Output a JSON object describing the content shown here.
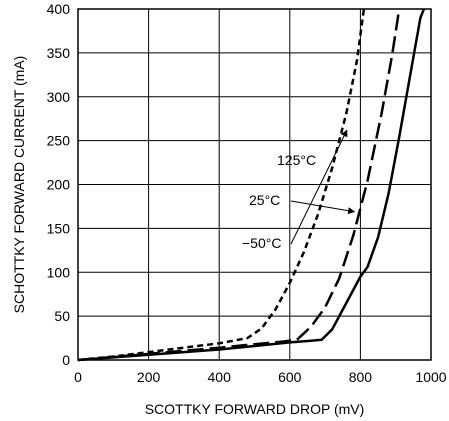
{
  "chart_data": {
    "type": "line",
    "title": "",
    "xlabel": "SCOTTKY FORWARD DROP (mV)",
    "ylabel": "SCHOTTKY FORWARD CURRENT (mA)",
    "xlim": [
      0,
      1000
    ],
    "ylim": [
      0,
      400
    ],
    "xticks": [
      0,
      200,
      400,
      600,
      800,
      1000
    ],
    "yticks": [
      0,
      50,
      100,
      150,
      200,
      250,
      300,
      350,
      400
    ],
    "grid": true,
    "legend": "none",
    "series": [
      {
        "name": "125°C",
        "dash": "short-dash",
        "points": [
          [
            0,
            0
          ],
          [
            100,
            4
          ],
          [
            200,
            9
          ],
          [
            300,
            14
          ],
          [
            400,
            19
          ],
          [
            480,
            25
          ],
          [
            520,
            36
          ],
          [
            560,
            58
          ],
          [
            600,
            88
          ],
          [
            640,
            123
          ],
          [
            680,
            166
          ],
          [
            720,
            219
          ],
          [
            760,
            281
          ],
          [
            790,
            341
          ],
          [
            810,
            400
          ]
        ]
      },
      {
        "name": "25°C",
        "dash": "long-dash",
        "points": [
          [
            0,
            0
          ],
          [
            100,
            3.5
          ],
          [
            200,
            7
          ],
          [
            300,
            10.5
          ],
          [
            400,
            14
          ],
          [
            500,
            18
          ],
          [
            580,
            21
          ],
          [
            620,
            23
          ],
          [
            660,
            38
          ],
          [
            700,
            60
          ],
          [
            740,
            93
          ],
          [
            780,
            142
          ],
          [
            820,
            204
          ],
          [
            860,
            281
          ],
          [
            890,
            348
          ],
          [
            910,
            400
          ]
        ]
      },
      {
        "name": "−50°C",
        "dash": "solid",
        "points": [
          [
            0,
            0
          ],
          [
            100,
            3
          ],
          [
            200,
            6
          ],
          [
            300,
            9
          ],
          [
            400,
            12
          ],
          [
            500,
            16
          ],
          [
            600,
            20
          ],
          [
            660,
            22
          ],
          [
            690,
            23
          ],
          [
            720,
            35
          ],
          [
            760,
            65
          ],
          [
            800,
            95
          ],
          [
            820,
            106
          ],
          [
            850,
            140
          ],
          [
            880,
            190
          ],
          [
            910,
            254
          ],
          [
            940,
            322
          ],
          [
            970,
            390
          ],
          [
            980,
            400
          ]
        ]
      }
    ],
    "annotations": [
      {
        "text": "125°C",
        "target_series": "125°C"
      },
      {
        "text": "25°C",
        "target_series": "25°C"
      },
      {
        "text": "−50°C",
        "target_series": "−50°C"
      }
    ]
  }
}
